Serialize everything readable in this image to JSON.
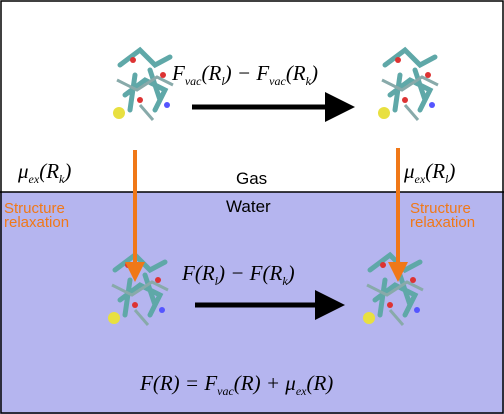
{
  "gas_label": "Gas",
  "water_label": "Water",
  "top_formula": [
    "F",
    "vac",
    "(R",
    "l",
    ") − F",
    "vac",
    "(R",
    "k",
    ")"
  ],
  "bottom_formula": [
    "F(R",
    "l",
    ") − F(R",
    "k",
    ")"
  ],
  "left_mu": [
    "μ",
    "ex",
    "(R",
    "k",
    ")"
  ],
  "right_mu": [
    "μ",
    "ex",
    "(R",
    "l",
    ")"
  ],
  "left_relaxation": [
    "Structure",
    "relaxation"
  ],
  "right_relaxation": [
    "Structure",
    "relaxation"
  ],
  "final_formula": [
    "F(R) = F",
    "vac",
    "(R) + μ",
    "ex",
    "(R)"
  ]
}
